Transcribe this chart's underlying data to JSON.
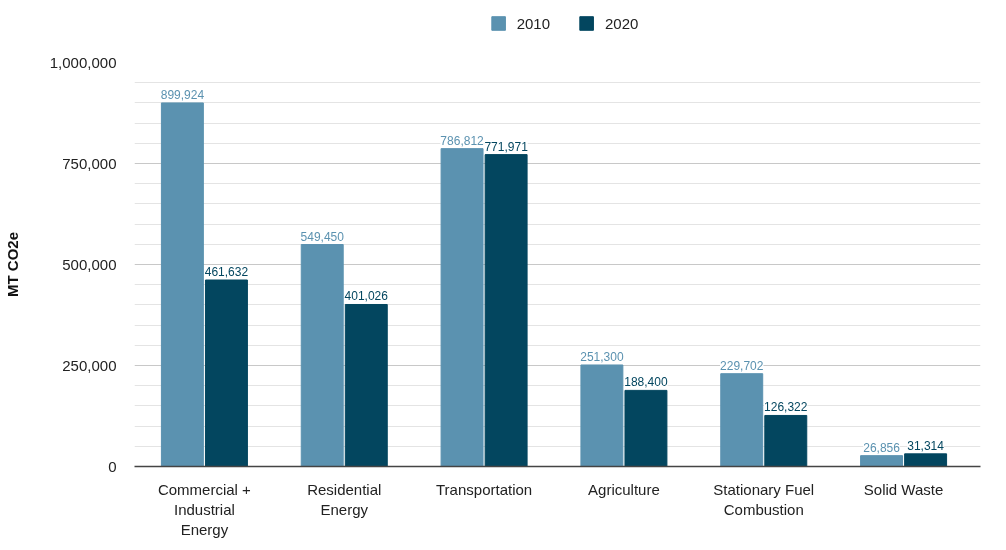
{
  "chart_data": {
    "type": "bar",
    "ylabel": "MT CO2e",
    "categories": [
      "Commercial + Industrial Energy",
      "Residential Energy",
      "Transportation",
      "Agriculture",
      "Stationary Fuel Combustion",
      "Solid Waste"
    ],
    "series": [
      {
        "name": "2010",
        "color": "#5b92b0",
        "values": [
          899924,
          549450,
          786812,
          251300,
          229702,
          26856
        ],
        "value_labels": [
          "899,924",
          "549,450",
          "786,812",
          "251,300",
          "229,702",
          "26,856"
        ]
      },
      {
        "name": "2020",
        "color": "#03465f",
        "values": [
          461632,
          401026,
          771971,
          188400,
          126322,
          31314
        ],
        "value_labels": [
          "461,632",
          "401,026",
          "771,971",
          "188,400",
          "126,322",
          "31,314"
        ]
      }
    ],
    "ylim": [
      0,
      1000000
    ],
    "yticks": [
      0,
      {
        "value": 250000,
        "label": "250,000"
      },
      {
        "value": 500000,
        "label": "500,000"
      },
      {
        "value": 750000,
        "label": "750,000"
      },
      {
        "value": 1000000,
        "label": "1,000,000"
      }
    ],
    "grid": "y",
    "legend": "top"
  }
}
